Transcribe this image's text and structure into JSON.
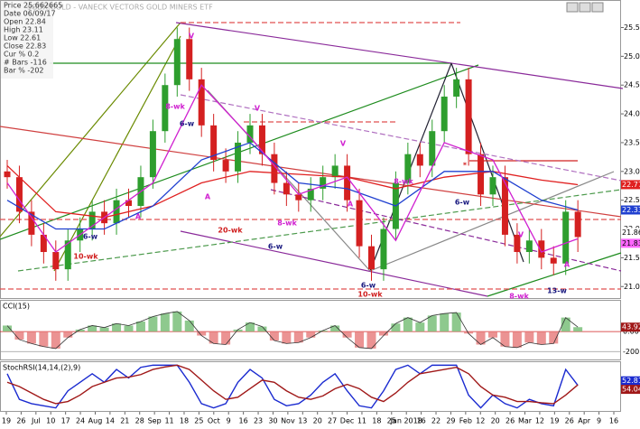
{
  "chart_data": {
    "type": "candlestick",
    "title": "$GDX:GOLD - VANECK VECTORS GOLD MINERS ETF",
    "info": [
      "Price 25.662665",
      "Date 06/09/17",
      "Open 22.84",
      "High 23.11",
      "Low 22.61",
      "Close 22.83",
      "Cur % 0.2",
      "# Bars -116",
      "Bar % -202"
    ],
    "open": [
      23.0,
      22.9,
      22.3,
      21.9,
      21.6,
      21.3,
      21.8,
      22.0,
      22.3,
      22.1,
      22.5,
      22.4,
      22.9,
      23.7,
      24.5,
      25.3,
      24.6,
      23.8,
      23.2,
      23.0,
      23.5,
      23.8,
      23.3,
      22.8,
      22.6,
      22.5,
      22.7,
      22.9,
      23.1,
      22.5,
      21.7,
      21.3,
      22.0,
      22.8,
      23.3,
      23.1,
      23.7,
      24.3,
      24.6,
      23.3,
      22.6,
      22.9,
      21.9,
      21.6,
      21.8,
      21.5,
      21.4,
      22.3
    ],
    "high": [
      23.2,
      23.1,
      22.5,
      22.1,
      21.8,
      22.0,
      22.2,
      22.5,
      22.5,
      22.7,
      22.7,
      23.1,
      23.9,
      24.7,
      25.5,
      25.5,
      24.8,
      24.0,
      23.4,
      23.7,
      24.0,
      24.0,
      23.5,
      23.0,
      22.8,
      22.9,
      23.1,
      23.3,
      23.3,
      22.7,
      21.9,
      22.2,
      23.0,
      23.5,
      23.5,
      23.9,
      24.5,
      24.8,
      24.8,
      23.5,
      23.1,
      23.1,
      22.1,
      22.0,
      22.0,
      21.7,
      22.5,
      22.5
    ],
    "low": [
      22.7,
      22.1,
      21.7,
      21.4,
      21.1,
      21.1,
      21.6,
      21.8,
      21.9,
      21.9,
      22.2,
      22.2,
      22.7,
      23.5,
      24.3,
      24.4,
      23.6,
      23.0,
      22.8,
      22.8,
      23.3,
      23.1,
      22.6,
      22.4,
      22.3,
      22.3,
      22.5,
      22.7,
      22.3,
      21.5,
      21.1,
      21.1,
      21.8,
      22.6,
      22.9,
      22.9,
      23.5,
      24.1,
      23.1,
      22.4,
      22.4,
      21.7,
      21.4,
      21.4,
      21.3,
      21.2,
      21.2,
      21.6
    ],
    "close": [
      22.9,
      22.3,
      21.9,
      21.6,
      21.3,
      21.8,
      22.0,
      22.3,
      22.1,
      22.5,
      22.4,
      22.9,
      23.7,
      24.5,
      25.3,
      24.6,
      23.8,
      23.2,
      23.0,
      23.5,
      23.8,
      23.3,
      22.8,
      22.6,
      22.5,
      22.7,
      22.9,
      23.1,
      22.5,
      21.7,
      21.3,
      22.0,
      22.8,
      23.3,
      23.1,
      23.7,
      24.3,
      24.6,
      23.3,
      22.6,
      22.9,
      21.9,
      21.6,
      21.8,
      21.5,
      21.4,
      22.3,
      21.86
    ],
    "up_color": "#2e9e2e",
    "down_color": "#d42020",
    "ylim": [
      20.8,
      25.9
    ],
    "yticks": [
      {
        "value": 21,
        "label": "21.00"
      },
      {
        "value": 21.5,
        "label": "21.50"
      },
      {
        "value": 22,
        "label": "22.00"
      },
      {
        "value": 22.5,
        "label": "22.50"
      },
      {
        "value": 23,
        "label": "23.00"
      },
      {
        "value": 23.5,
        "label": "23.50"
      },
      {
        "value": 24,
        "label": "24.00"
      },
      {
        "value": 24.5,
        "label": "24.50"
      },
      {
        "value": 25,
        "label": "25.00"
      },
      {
        "value": 25.5,
        "label": "25.50"
      }
    ],
    "series": [
      {
        "name": "20-wk",
        "color": "#e02020",
        "x": [
          0,
          4,
          8,
          12,
          16,
          20,
          24,
          28,
          32,
          36,
          40,
          44,
          47
        ],
        "values": [
          23.1,
          22.3,
          22.2,
          22.4,
          22.8,
          23.0,
          22.95,
          22.9,
          22.7,
          22.9,
          23.0,
          22.85,
          22.77
        ]
      },
      {
        "name": "10-wk",
        "color": "#2040d0",
        "x": [
          0,
          4,
          8,
          12,
          16,
          20,
          24,
          28,
          32,
          36,
          40,
          44,
          47
        ],
        "values": [
          22.5,
          22.0,
          22.0,
          22.4,
          23.2,
          23.5,
          22.8,
          22.7,
          22.4,
          23.0,
          23.0,
          22.5,
          22.33
        ]
      },
      {
        "name": "8-wk",
        "color": "#d020d0",
        "x": [
          0,
          4,
          8,
          12,
          16,
          20,
          24,
          28,
          32,
          36,
          40,
          44,
          47
        ],
        "values": [
          22.8,
          21.6,
          22.2,
          22.8,
          24.5,
          23.6,
          22.6,
          22.9,
          21.8,
          23.5,
          23.2,
          21.6,
          21.83
        ]
      }
    ],
    "annotations": [
      "6-w",
      "10-wk",
      "8-wk",
      "6-w",
      "V",
      "V",
      "A",
      "A",
      "20-wk",
      "6-w",
      "8-wk",
      "V",
      "A",
      "6-w",
      "10-wk",
      "8-wk",
      "6-w",
      "*",
      "V",
      "8-wk",
      "13-w",
      "A"
    ],
    "date_labels": [
      "19",
      "26",
      "Jul",
      "10",
      "17",
      "24",
      "Aug",
      "14",
      "21",
      "28",
      "Sep",
      "11",
      "18",
      "25",
      "Oct",
      "9",
      "16",
      "23",
      "30",
      "Nov",
      "13",
      "20",
      "27",
      "Dec",
      "11",
      "18",
      "25",
      "Jan 2018",
      "16",
      "22",
      "29",
      "Feb",
      "12",
      "20",
      "26",
      "Mar",
      "12",
      "19",
      "26",
      "Apr",
      "9",
      "16"
    ],
    "cci": {
      "label": "CCI(15)",
      "ylim": [
        -270,
        290
      ],
      "yticks": [
        {
          "value": 0,
          "label": "0.00"
        },
        {
          "value": -200,
          "label": "-200.0"
        }
      ],
      "values": [
        60,
        -80,
        -120,
        -150,
        -170,
        -60,
        20,
        60,
        40,
        80,
        60,
        100,
        150,
        180,
        200,
        110,
        -40,
        -120,
        -130,
        20,
        90,
        50,
        -90,
        -120,
        -110,
        -60,
        10,
        60,
        -60,
        -160,
        -170,
        -40,
        80,
        140,
        90,
        160,
        180,
        190,
        -20,
        -130,
        -60,
        -150,
        -160,
        -110,
        -130,
        -120,
        140,
        43.92
      ]
    },
    "stoch": {
      "label": "StochRSI(14,14,(2),9)",
      "ylim": [
        -5,
        105
      ],
      "series": [
        {
          "name": "%K",
          "color": "#1a2ad0",
          "values": [
            80,
            20,
            10,
            5,
            0,
            40,
            60,
            80,
            60,
            90,
            70,
            95,
            100,
            100,
            100,
            60,
            10,
            0,
            10,
            60,
            90,
            70,
            20,
            5,
            10,
            30,
            60,
            80,
            40,
            5,
            0,
            40,
            90,
            100,
            80,
            100,
            100,
            100,
            30,
            0,
            30,
            10,
            0,
            20,
            10,
            5,
            90,
            52.81
          ]
        },
        {
          "name": "%D",
          "color": "#a01818",
          "values": [
            60,
            50,
            35,
            20,
            10,
            15,
            30,
            50,
            60,
            70,
            72,
            78,
            90,
            96,
            100,
            90,
            65,
            40,
            20,
            25,
            45,
            65,
            60,
            40,
            25,
            20,
            28,
            45,
            55,
            45,
            25,
            15,
            35,
            60,
            80,
            85,
            90,
            95,
            80,
            50,
            30,
            25,
            15,
            15,
            12,
            10,
            30,
            54.04
          ]
        }
      ]
    }
  }
}
